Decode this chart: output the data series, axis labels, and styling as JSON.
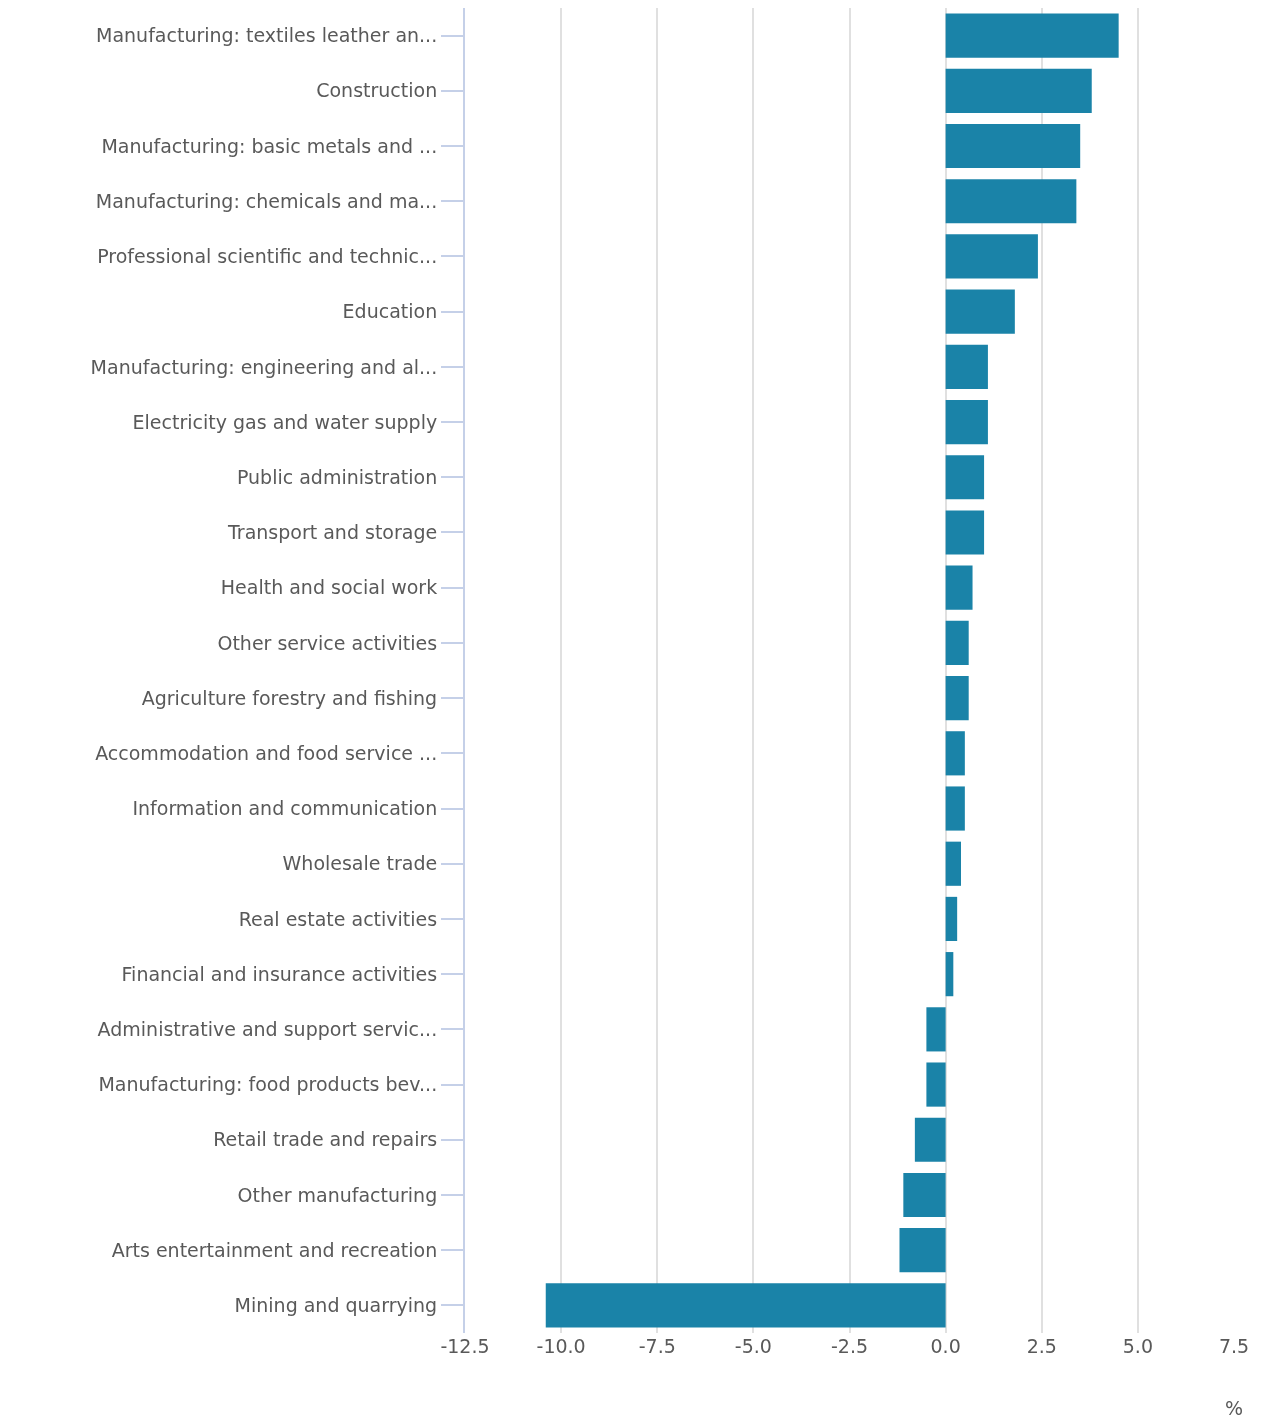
{
  "chart_data": {
    "type": "bar",
    "orientation": "horizontal",
    "xlabel": "%",
    "categories": [
      "Manufacturing: textiles leather an...",
      "Construction",
      "Manufacturing: basic metals and ...",
      "Manufacturing: chemicals and ma...",
      "Professional scientific and technic...",
      "Education",
      "Manufacturing: engineering and al...",
      "Electricity gas and water supply",
      "Public administration",
      "Transport and storage",
      "Health and social work",
      "Other service activities",
      "Agriculture forestry and fishing",
      "Accommodation and food service ...",
      "Information and communication",
      "Wholesale trade",
      "Real estate activities",
      "Financial and insurance activities",
      "Administrative and support servic...",
      "Manufacturing: food products bev...",
      "Retail trade and repairs",
      "Other manufacturing",
      "Arts entertainment and recreation",
      "Mining and quarrying"
    ],
    "values": [
      4.5,
      3.8,
      3.5,
      3.4,
      2.4,
      1.8,
      1.1,
      1.1,
      1.0,
      1.0,
      0.7,
      0.6,
      0.6,
      0.5,
      0.5,
      0.4,
      0.3,
      0.2,
      -0.5,
      -0.5,
      -0.8,
      -1.1,
      -1.2,
      -10.4
    ],
    "color": "#1a83a8",
    "xlim": [
      -12.5,
      7.5
    ],
    "xticks": [
      {
        "value": -12.5,
        "label": "-12.5"
      },
      {
        "value": -10,
        "label": "-10.0"
      },
      {
        "value": -7.5,
        "label": "-7.5"
      },
      {
        "value": -5,
        "label": "-5.0"
      },
      {
        "value": -2.5,
        "label": "-2.5"
      },
      {
        "value": 0,
        "label": "0.0"
      },
      {
        "value": 2.5,
        "label": "2.5"
      },
      {
        "value": 5,
        "label": "5.0"
      },
      {
        "value": 7.5,
        "label": "7.5"
      }
    ],
    "grid": "x"
  }
}
